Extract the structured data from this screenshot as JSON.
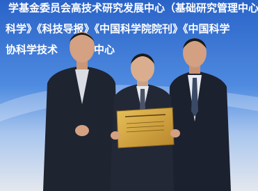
{
  "banner": {
    "lines": [
      "学基金委员会高技术研究发展中心（基础研究管理中心",
      "科学》《科技导报》《中国科学院院刊》《中国科学",
      "协科学技术"
    ],
    "line_end": "中心"
  }
}
